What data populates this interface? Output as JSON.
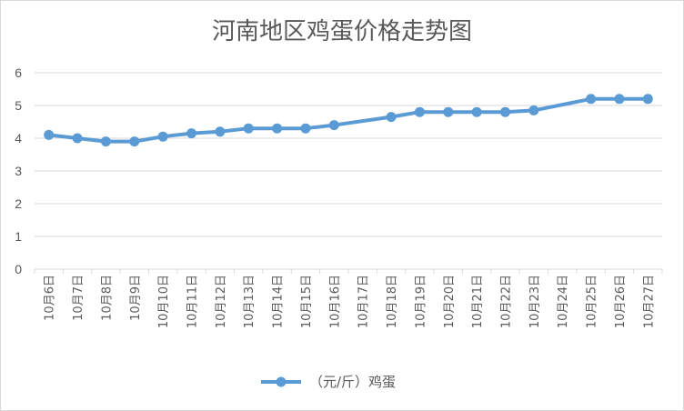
{
  "chart_data": {
    "type": "line",
    "title": "河南地区鸡蛋价格走势图",
    "xlabel": "",
    "ylabel": "",
    "ylim": [
      0,
      6
    ],
    "yticks": [
      "0",
      "1",
      "2",
      "3",
      "4",
      "5",
      "6"
    ],
    "grid": true,
    "legend_position": "bottom",
    "categories": [
      "10月6日",
      "10月7日",
      "10月8日",
      "10月9日",
      "10月10日",
      "10月11日",
      "10月12日",
      "10月13日",
      "10月14日",
      "10月15日",
      "10月16日",
      "10月17日",
      "10月18日",
      "10月19日",
      "10月20日",
      "10月21日",
      "10月22日",
      "10月23日",
      "10月24日",
      "10月25日",
      "10月26日",
      "10月27日"
    ],
    "series": [
      {
        "name": "（元/斤）鸡蛋",
        "color": "#5b9bd5",
        "values": [
          4.1,
          4.0,
          3.9,
          3.9,
          4.05,
          4.15,
          4.2,
          4.3,
          4.3,
          4.3,
          4.4,
          null,
          4.65,
          4.8,
          4.8,
          4.8,
          4.8,
          4.85,
          null,
          5.2,
          5.2,
          5.2
        ]
      }
    ]
  }
}
